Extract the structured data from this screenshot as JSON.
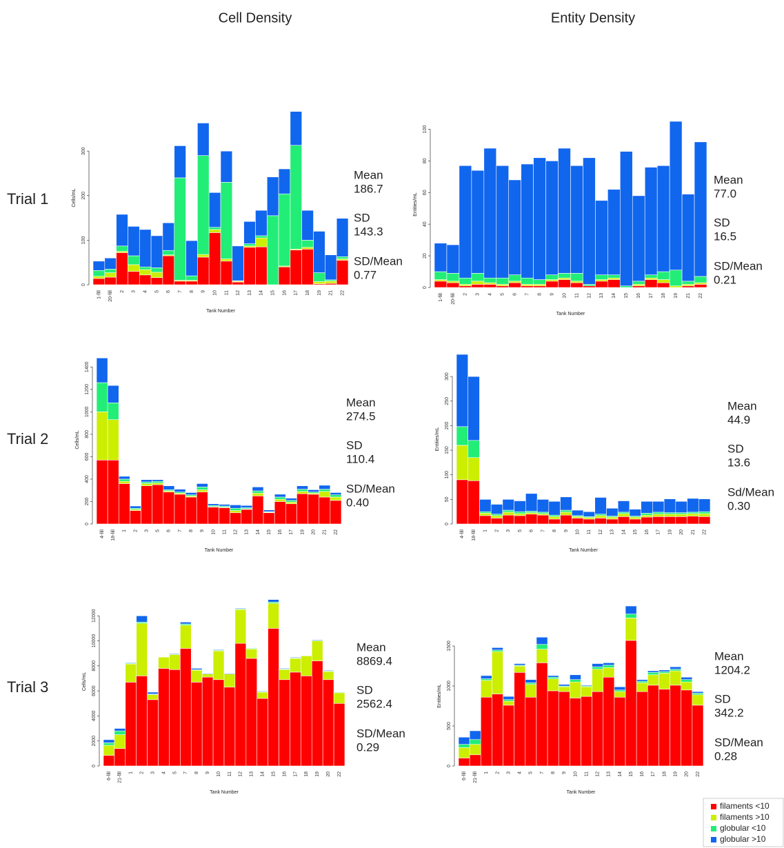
{
  "column_headers": [
    "Cell Density",
    "Entity Density"
  ],
  "row_labels": [
    "Trial 1",
    "Trial 2",
    "Trial 3"
  ],
  "chart_data": [
    {
      "type": "bar",
      "stacked": true,
      "y_label": "Cells/mL",
      "x_label": "Tank Number",
      "categories": [
        "1-fill",
        "20-fill",
        "2",
        "3",
        "4",
        "5",
        "6",
        "7",
        "8",
        "9",
        "10",
        "11",
        "12",
        "13",
        "14",
        "15",
        "16",
        "17",
        "18",
        "19",
        "21",
        "22"
      ],
      "ylim": [
        0,
        390
      ],
      "yticks": [
        0,
        100,
        200,
        300
      ],
      "series": [
        {
          "name": "filaments <10",
          "color": "#ff0000",
          "values": [
            14,
            17,
            72,
            30,
            22,
            16,
            65,
            8,
            8,
            62,
            117,
            53,
            6,
            84,
            85,
            0,
            40,
            78,
            80,
            2,
            3,
            55
          ]
        },
        {
          "name": "filaments >10",
          "color": "#ccee00",
          "values": [
            5,
            10,
            3,
            15,
            12,
            12,
            2,
            2,
            2,
            6,
            7,
            5,
            2,
            3,
            20,
            0,
            2,
            2,
            4,
            5,
            5,
            3
          ]
        },
        {
          "name": "globular <10",
          "color": "#22ee77",
          "values": [
            13,
            8,
            12,
            20,
            6,
            10,
            10,
            230,
            10,
            222,
            5,
            172,
            1,
            5,
            5,
            155,
            162,
            233,
            16,
            20,
            3,
            5
          ]
        },
        {
          "name": "globular >10",
          "color": "#1166ee",
          "values": [
            21,
            25,
            71,
            66,
            84,
            72,
            62,
            72,
            79,
            73,
            78,
            70,
            78,
            50,
            57,
            87,
            56,
            76,
            67,
            93,
            56,
            86
          ]
        }
      ],
      "stats": [
        {
          "label": "Mean",
          "value": "186.7"
        },
        {
          "label": "SD",
          "value": "143.3"
        },
        {
          "label": "SD/Mean",
          "value": "0.77"
        }
      ]
    },
    {
      "type": "bar",
      "stacked": true,
      "y_label": "Entities/mL",
      "x_label": "Tank Number",
      "categories": [
        "1-fill",
        "20-fill",
        "2",
        "3",
        "4",
        "5",
        "6",
        "7",
        "8",
        "9",
        "10",
        "11",
        "12",
        "13",
        "14",
        "15",
        "16",
        "17",
        "18",
        "19",
        "21",
        "22"
      ],
      "ylim": [
        0,
        105
      ],
      "yticks": [
        0,
        20,
        40,
        60,
        80,
        100
      ],
      "series": [
        {
          "color": "#ff0000",
          "values": [
            4,
            3,
            1,
            2,
            2,
            1,
            3,
            1,
            1,
            4,
            5,
            3,
            1,
            4,
            5,
            0,
            1,
            5,
            3,
            0,
            1,
            2
          ]
        },
        {
          "color": "#ccee00",
          "values": [
            1,
            1,
            1,
            2,
            1,
            1,
            1,
            1,
            1,
            1,
            1,
            1,
            0,
            1,
            1,
            0,
            1,
            1,
            2,
            1,
            1,
            1
          ]
        },
        {
          "color": "#22ee77",
          "values": [
            5,
            5,
            4,
            5,
            3,
            4,
            4,
            4,
            3,
            3,
            3,
            5,
            1,
            3,
            2,
            1,
            2,
            2,
            5,
            10,
            2,
            4
          ]
        },
        {
          "color": "#1166ee",
          "values": [
            18,
            18,
            71,
            65,
            82,
            71,
            60,
            72,
            77,
            72,
            79,
            68,
            80,
            47,
            54,
            85,
            54,
            68,
            67,
            94,
            55,
            85
          ]
        }
      ],
      "stats": [
        {
          "label": "Mean",
          "value": "77.0"
        },
        {
          "label": "SD",
          "value": "16.5"
        },
        {
          "label": "SD/Mean",
          "value": "0.21"
        }
      ]
    },
    {
      "type": "bar",
      "stacked": true,
      "y_label": "Cells/mL",
      "x_label": "Tank Number",
      "categories": [
        "4-fill",
        "18-fill",
        "1",
        "2",
        "3",
        "5",
        "6",
        "7",
        "8",
        "9",
        "10",
        "11",
        "12",
        "13",
        "14",
        "15",
        "16",
        "17",
        "19",
        "20",
        "21",
        "22"
      ],
      "ylim": [
        0,
        1500
      ],
      "yticks": [
        0,
        200,
        400,
        600,
        800,
        1000,
        1200,
        1400
      ],
      "series": [
        {
          "color": "#ff0000",
          "values": [
            570,
            570,
            360,
            120,
            340,
            350,
            285,
            265,
            240,
            285,
            150,
            145,
            100,
            130,
            250,
            100,
            200,
            180,
            270,
            265,
            240,
            210
          ]
        },
        {
          "color": "#ccee00",
          "values": [
            430,
            360,
            20,
            10,
            20,
            15,
            10,
            10,
            10,
            20,
            5,
            5,
            20,
            5,
            25,
            5,
            20,
            15,
            20,
            10,
            50,
            30
          ]
        },
        {
          "color": "#22ee77",
          "values": [
            260,
            150,
            20,
            10,
            15,
            15,
            10,
            10,
            10,
            25,
            10,
            10,
            20,
            10,
            20,
            5,
            20,
            15,
            20,
            10,
            20,
            20
          ]
        },
        {
          "color": "#1166ee",
          "values": [
            220,
            155,
            25,
            20,
            20,
            15,
            35,
            25,
            20,
            30,
            15,
            15,
            30,
            20,
            35,
            15,
            25,
            20,
            30,
            20,
            35,
            20
          ]
        }
      ],
      "stats": [
        {
          "label": "Mean",
          "value": "274.5"
        },
        {
          "label": "SD",
          "value": "110.4"
        },
        {
          "label": "SD/Mean",
          "value": "0.40"
        }
      ]
    },
    {
      "type": "bar",
      "stacked": true,
      "y_label": "Entities/mL",
      "x_label": "Tank Number",
      "categories": [
        "4-fill",
        "18-fill",
        "1",
        "2",
        "3",
        "5",
        "6",
        "7",
        "8",
        "9",
        "10",
        "11",
        "12",
        "13",
        "14",
        "15",
        "16",
        "17",
        "19",
        "20",
        "21",
        "22"
      ],
      "ylim": [
        0,
        345
      ],
      "yticks": [
        0,
        50,
        100,
        150,
        200,
        250,
        300
      ],
      "series": [
        {
          "color": "#ff0000",
          "values": [
            90,
            88,
            17,
            12,
            18,
            17,
            20,
            18,
            10,
            18,
            12,
            10,
            12,
            10,
            15,
            10,
            14,
            15,
            15,
            15,
            16,
            15
          ]
        },
        {
          "color": "#ccee00",
          "values": [
            70,
            47,
            5,
            5,
            6,
            4,
            3,
            3,
            5,
            6,
            3,
            3,
            5,
            4,
            6,
            4,
            4,
            5,
            5,
            5,
            5,
            6
          ]
        },
        {
          "color": "#22ee77",
          "values": [
            38,
            35,
            3,
            3,
            4,
            4,
            3,
            3,
            3,
            4,
            2,
            2,
            3,
            2,
            3,
            2,
            4,
            4,
            3,
            3,
            3,
            4
          ]
        },
        {
          "color": "#1166ee",
          "values": [
            147,
            130,
            25,
            20,
            22,
            22,
            36,
            26,
            28,
            27,
            11,
            10,
            34,
            16,
            23,
            14,
            24,
            22,
            28,
            23,
            28,
            26
          ]
        }
      ],
      "stats": [
        {
          "label": "Mean",
          "value": "44.9"
        },
        {
          "label": "SD",
          "value": "13.6"
        },
        {
          "label": "Sd/Mean",
          "value": "0.30"
        }
      ]
    },
    {
      "type": "bar",
      "stacked": true,
      "y_label": "Cells/mL",
      "x_label": "Tank Number",
      "categories": [
        "6-fill",
        "21-fill",
        "1",
        "2",
        "3",
        "4",
        "5",
        "7",
        "8",
        "9",
        "10",
        "11",
        "12",
        "13",
        "14",
        "15",
        "16",
        "17",
        "18",
        "19",
        "20",
        "22"
      ],
      "ylim": [
        0,
        13500
      ],
      "yticks": [
        0,
        2000,
        4000,
        6000,
        8000,
        10000,
        12000
      ],
      "series": [
        {
          "color": "#ff0000",
          "values": [
            850,
            1400,
            6700,
            7200,
            5300,
            7800,
            7700,
            9400,
            6700,
            7100,
            6900,
            6300,
            9800,
            8600,
            5400,
            11000,
            6900,
            7500,
            7200,
            8400,
            6900,
            5000
          ]
        },
        {
          "color": "#ccee00",
          "values": [
            800,
            1100,
            1450,
            4200,
            400,
            900,
            1200,
            1850,
            950,
            250,
            2300,
            1050,
            2700,
            750,
            500,
            2000,
            800,
            1100,
            1600,
            1600,
            650,
            850
          ]
        },
        {
          "color": "#22ee77",
          "values": [
            200,
            300,
            50,
            100,
            50,
            0,
            50,
            100,
            50,
            0,
            50,
            0,
            50,
            50,
            50,
            100,
            50,
            50,
            0,
            50,
            50,
            50
          ]
        },
        {
          "color": "#1166ee",
          "values": [
            250,
            200,
            50,
            500,
            150,
            0,
            50,
            150,
            100,
            50,
            50,
            50,
            50,
            0,
            50,
            200,
            50,
            50,
            0,
            50,
            50,
            0
          ]
        }
      ],
      "stats": [
        {
          "label": "Mean",
          "value": "8869.4"
        },
        {
          "label": "SD",
          "value": "2562.4"
        },
        {
          "label": "SD/Mean",
          "value": "0.29"
        }
      ]
    },
    {
      "type": "bar",
      "stacked": true,
      "y_label": "Entities/mL",
      "x_label": "Tank Number",
      "categories": [
        "6-fill",
        "21-fill",
        "1",
        "2",
        "3",
        "4",
        "5",
        "7",
        "8",
        "9",
        "10",
        "11",
        "12",
        "13",
        "14",
        "15",
        "16",
        "17",
        "18",
        "19",
        "20",
        "22"
      ],
      "ylim": [
        0,
        1750
      ],
      "yticks": [
        0,
        500,
        1000,
        1500
      ],
      "series": [
        {
          "color": "#ff0000",
          "values": [
            100,
            140,
            860,
            900,
            760,
            1170,
            860,
            1290,
            940,
            930,
            850,
            870,
            930,
            1110,
            860,
            1570,
            930,
            1010,
            960,
            1010,
            950,
            760
          ]
        },
        {
          "color": "#ccee00",
          "values": [
            130,
            130,
            210,
            530,
            50,
            80,
            160,
            170,
            150,
            60,
            200,
            120,
            280,
            120,
            70,
            280,
            110,
            130,
            200,
            180,
            100,
            130
          ]
        },
        {
          "color": "#22ee77",
          "values": [
            40,
            60,
            20,
            20,
            20,
            10,
            20,
            60,
            20,
            10,
            30,
            10,
            30,
            30,
            20,
            50,
            20,
            30,
            20,
            20,
            30,
            20
          ]
        },
        {
          "color": "#1166ee",
          "values": [
            90,
            110,
            40,
            30,
            40,
            20,
            40,
            90,
            20,
            20,
            60,
            10,
            40,
            30,
            40,
            100,
            20,
            20,
            20,
            30,
            30,
            20
          ]
        }
      ],
      "stats": [
        {
          "label": "Mean",
          "value": "1204.2"
        },
        {
          "label": "SD",
          "value": "342.2"
        },
        {
          "label": "SD/Mean",
          "value": "0.28"
        }
      ]
    }
  ]
}
